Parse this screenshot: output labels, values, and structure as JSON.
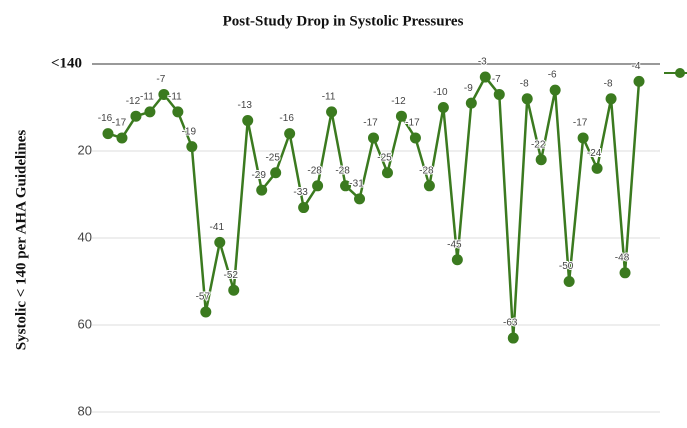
{
  "chart_data": {
    "type": "line",
    "title": "Post-Study Drop in Systolic Pressures",
    "y_label": "Systolic < 140 per AHA Guidelines",
    "categories": [
      null,
      null,
      null,
      null,
      null,
      null,
      null,
      null,
      null,
      null,
      null,
      null,
      null,
      null,
      null,
      null,
      null,
      null,
      null,
      null,
      null,
      null,
      null,
      null,
      null,
      null,
      null,
      null,
      null,
      null,
      null,
      null,
      null,
      null,
      null,
      null,
      null,
      null,
      null
    ],
    "series": [
      {
        "color": "#3b7a1f",
        "values": [
          -16,
          -17,
          -12,
          -11,
          -7,
          -11,
          -19,
          -57,
          -41,
          -52,
          -13,
          -29,
          -25,
          -16,
          -33,
          -28,
          -11,
          -28,
          -31,
          -17,
          -25,
          -12,
          -17,
          -28,
          -10,
          -45,
          -9,
          -3,
          -7,
          -63,
          -8,
          -22,
          -6,
          -50,
          -17,
          -24,
          -8,
          -48,
          -4
        ]
      }
    ],
    "ylim": [
      -82,
      0
    ],
    "yticks": [
      {
        "value": 0,
        "label": "<140"
      },
      {
        "value": -20,
        "label": "20"
      },
      {
        "value": -40,
        "label": "40"
      },
      {
        "value": -60,
        "label": "60"
      },
      {
        "value": -80,
        "label": "80"
      }
    ],
    "grid": true
  }
}
